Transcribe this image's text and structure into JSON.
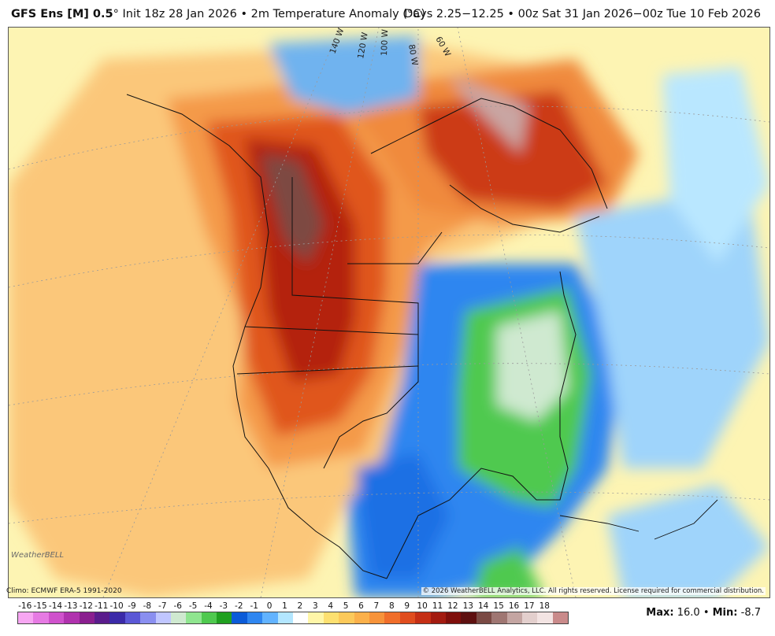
{
  "header": {
    "model": "GFS Ens [M] 0.5",
    "degree_mark": "°",
    "init": "Init 18z 28 Jan 2026",
    "bullet": "•",
    "parameter": "2m Temperature Anomaly (°C)",
    "valid_range": "Days 2.25−12.25 • 00z Sat 31 Jan 2026−00z Tue 10 Feb 2026"
  },
  "map": {
    "longitude_labels": [
      "140 W",
      "120 W",
      "100 W",
      "80 W",
      "60 W"
    ],
    "logo_text": "WeatherBELL",
    "climo_note": "Climo: ECMWF ERA-5 1991-2020",
    "copyright": "© 2026 WeatherBELL Analytics, LLC. All rights reserved. License required for commercial distribution."
  },
  "colorbar": {
    "labels": [
      "-16",
      "-15",
      "-14",
      "-13",
      "-12",
      "-11",
      "-10",
      "-9",
      "-8",
      "-7",
      "-6",
      "-5",
      "-4",
      "-3",
      "-2",
      "-1",
      "0",
      "1",
      "2",
      "3",
      "4",
      "5",
      "6",
      "7",
      "8",
      "9",
      "10",
      "11",
      "12",
      "13",
      "14",
      "15",
      "16",
      "17",
      "18"
    ],
    "colors": [
      "#f7a6f2",
      "#e67ae3",
      "#cf52cc",
      "#b032ae",
      "#8a1f8f",
      "#5a1c8c",
      "#3b2aa8",
      "#5b58d6",
      "#8a8ff0",
      "#c0c6ff",
      "#cfe9d0",
      "#8fe58f",
      "#4fc94f",
      "#20a020",
      "#0b5bd8",
      "#2f86f0",
      "#62b3ff",
      "#b3e6ff",
      "#ffffff",
      "#fff6a8",
      "#fde070",
      "#fcc95a",
      "#fbb04a",
      "#f7933a",
      "#f06e2a",
      "#e04d1e",
      "#c52f15",
      "#a31b10",
      "#7f0f0b",
      "#5e1010",
      "#7a4a44",
      "#9f7672",
      "#c4a5a2",
      "#e3cfcd",
      "#f3e4e3",
      "#c98a8a"
    ],
    "max_label": "Max:",
    "max_value": "16.0",
    "separator": "•",
    "min_label": "Min:",
    "min_value": "-8.7"
  }
}
